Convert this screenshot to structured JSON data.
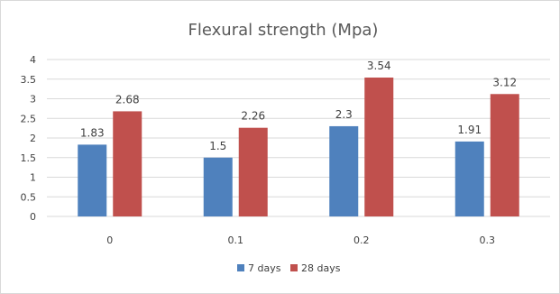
{
  "chart_data": {
    "type": "bar",
    "title": "Flexural strength (Mpa)",
    "categories": [
      "0",
      "0.1",
      "0.2",
      "0.3"
    ],
    "series": [
      {
        "name": "7 days",
        "values": [
          1.83,
          1.5,
          2.3,
          1.91
        ],
        "labels": [
          "1.83",
          "1.5",
          "2.3",
          "1.91"
        ],
        "color": "#4f81bd"
      },
      {
        "name": "28 days",
        "values": [
          2.68,
          2.26,
          3.54,
          3.12
        ],
        "labels": [
          "2.68",
          "2.26",
          "3.54",
          "3.12"
        ],
        "color": "#c0504d"
      }
    ],
    "ylim": [
      0,
      4
    ],
    "yticks": [
      "0",
      "0.5",
      "1",
      "1.5",
      "2",
      "2.5",
      "3",
      "3.5",
      "4"
    ],
    "grid": true,
    "legend_position": "bottom"
  }
}
